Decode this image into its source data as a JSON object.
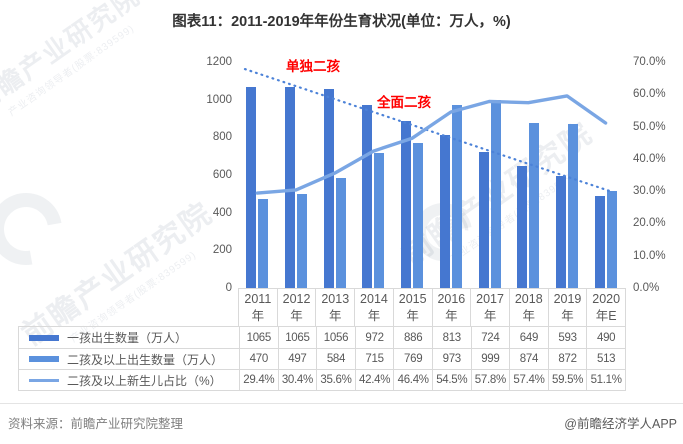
{
  "title": "图表11：2011-2019年年份生育状况(单位：万人，%)",
  "chart_data": {
    "type": "bar",
    "title": "图表11：2011-2019年年份生育状况(单位：万人，%)",
    "categories": [
      {
        "num": "2011",
        "suffix": "年"
      },
      {
        "num": "2012",
        "suffix": "年"
      },
      {
        "num": "2013",
        "suffix": "年"
      },
      {
        "num": "2014",
        "suffix": "年"
      },
      {
        "num": "2015",
        "suffix": "年"
      },
      {
        "num": "2016",
        "suffix": "年"
      },
      {
        "num": "2017",
        "suffix": "年"
      },
      {
        "num": "2018",
        "suffix": "年"
      },
      {
        "num": "2019",
        "suffix": "年"
      },
      {
        "num": "2020",
        "suffix": "年E"
      }
    ],
    "left_axis": {
      "label_unit": "万人",
      "min": 0,
      "max": 1200,
      "ticks": [
        "1200",
        "1000",
        "800",
        "600",
        "400",
        "200",
        "0"
      ]
    },
    "right_axis": {
      "label_unit": "%",
      "min": 0,
      "max": 70,
      "ticks": [
        "70.0%",
        "60.0%",
        "50.0%",
        "40.0%",
        "30.0%",
        "20.0%",
        "10.0%",
        "0.0%"
      ]
    },
    "series": [
      {
        "name": "一孩出生数量（万人）",
        "type": "bar",
        "axis": "left",
        "color": "#4577d0",
        "values": [
          1065,
          1065,
          1056,
          972,
          886,
          813,
          724,
          649,
          593,
          490
        ],
        "display": [
          "1065",
          "1065",
          "1056",
          "972",
          "886",
          "813",
          "724",
          "649",
          "593",
          "490"
        ]
      },
      {
        "name": "二孩及以上出生数量（万人）",
        "type": "bar",
        "axis": "left",
        "color": "#5b91dd",
        "values": [
          470,
          497,
          584,
          715,
          769,
          973,
          999,
          874,
          872,
          513
        ],
        "display": [
          "470",
          "497",
          "584",
          "715",
          "769",
          "973",
          "999",
          "874",
          "872",
          "513"
        ]
      },
      {
        "name": "二孩及以上新生儿占比（%）",
        "type": "line",
        "axis": "right",
        "color": "#7aa6e4",
        "values": [
          29.4,
          30.4,
          35.6,
          42.4,
          46.4,
          54.5,
          57.8,
          57.4,
          59.5,
          51.1
        ],
        "display": [
          "29.4%",
          "30.4%",
          "35.6%",
          "42.4%",
          "46.4%",
          "54.5%",
          "57.8%",
          "57.4%",
          "59.5%",
          "51.1%"
        ]
      }
    ],
    "trendline": {
      "of_series": 0,
      "style": "dotted",
      "color": "#4c82d8"
    },
    "annotations": [
      {
        "text": "单独二孩"
      },
      {
        "text": "全面二孩"
      }
    ],
    "legend_position": "table-left",
    "grid": false
  },
  "footer": {
    "source": "资料来源：前瞻产业研究院整理",
    "credit": "@前瞻经济学人APP"
  },
  "watermark": {
    "main": "前瞻产业研究院",
    "sub": "产业咨询领导者(股票:839599)"
  }
}
